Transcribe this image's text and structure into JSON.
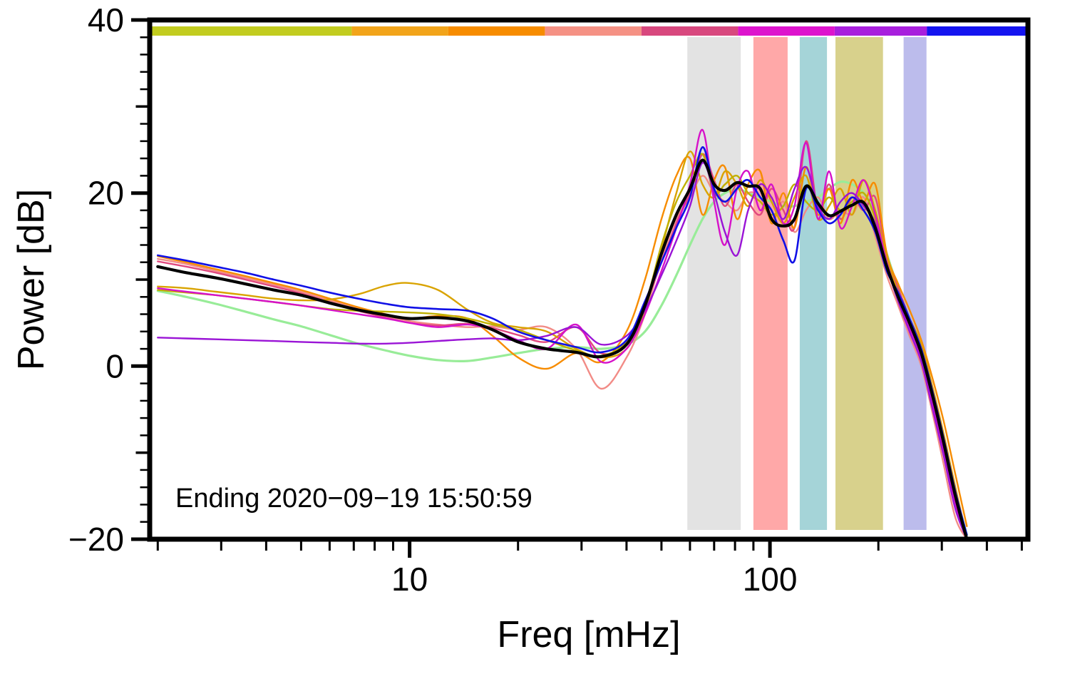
{
  "chart_data": {
    "type": "line",
    "title": "",
    "xlabel": "Freq [mHz]",
    "ylabel": "Power [dB]",
    "x_scale": "log",
    "xlim": [
      1.9,
      520
    ],
    "ylim": [
      -20,
      40
    ],
    "grid": false,
    "legend": "none",
    "annotation": "Ending 2020−09−19 15:50:59",
    "x_major_ticks": [
      {
        "value": 10,
        "label": "10"
      },
      {
        "value": 100,
        "label": "100"
      }
    ],
    "x_minor_ticks": [
      2,
      3,
      4,
      5,
      6,
      7,
      8,
      9,
      20,
      30,
      40,
      50,
      60,
      70,
      80,
      90,
      200,
      300,
      400,
      500
    ],
    "y_major_ticks": [
      {
        "value": -20,
        "label": "−20"
      },
      {
        "value": 0,
        "label": "0"
      },
      {
        "value": 20,
        "label": "20"
      },
      {
        "value": 40,
        "label": "40"
      }
    ],
    "y_minor_step": 2,
    "top_color_strip": [
      {
        "color": "#c2cc1f",
        "from": 0.0,
        "to": 0.23
      },
      {
        "color": "#f2a41a",
        "from": 0.23,
        "to": 0.34
      },
      {
        "color": "#f78c00",
        "from": 0.34,
        "to": 0.45
      },
      {
        "color": "#f59184",
        "from": 0.45,
        "to": 0.56
      },
      {
        "color": "#d8487e",
        "from": 0.56,
        "to": 0.67
      },
      {
        "color": "#dd14cd",
        "from": 0.67,
        "to": 0.78
      },
      {
        "color": "#a81fdd",
        "from": 0.78,
        "to": 0.885
      },
      {
        "color": "#1414f0",
        "from": 0.885,
        "to": 1.0
      }
    ],
    "shaded_bands": [
      {
        "color": "#e3e3e3",
        "from_mhz": 59,
        "to_mhz": 83
      },
      {
        "color": "#ffa8a8",
        "from_mhz": 90,
        "to_mhz": 112
      },
      {
        "color": "#a5d4d8",
        "from_mhz": 121,
        "to_mhz": 144
      },
      {
        "color": "#d8d18c",
        "from_mhz": 152,
        "to_mhz": 206
      },
      {
        "color": "#bcbcec",
        "from_mhz": 235,
        "to_mhz": 272
      }
    ],
    "freq_mhz": [
      2,
      2.4,
      2.9,
      3.5,
      4.2,
      5,
      6,
      7.2,
      8.6,
      10,
      12,
      14.5,
      17,
      20,
      24,
      29,
      34,
      40,
      45,
      50,
      55,
      60,
      65,
      70,
      75,
      81,
      87,
      94,
      101,
      109,
      117,
      126,
      136,
      146,
      157,
      169,
      182,
      196,
      211,
      227,
      244,
      263,
      283,
      304,
      327,
      352
    ],
    "series": [
      {
        "name": "pale-green",
        "color": "#98ec98",
        "width": 3.2,
        "values": [
          8.7,
          8.0,
          7.2,
          6.3,
          5.4,
          4.6,
          3.6,
          2.6,
          1.8,
          1.2,
          0.7,
          0.6,
          1.0,
          1.5,
          2.0,
          2.2,
          2.0,
          2.5,
          4.0,
          7.0,
          10.5,
          14.0,
          17.0,
          19.0,
          20.0,
          20.5,
          20.0,
          19.5,
          19.0,
          18.5,
          18.5,
          19.0,
          19.5,
          20.5,
          21.3,
          21.0,
          20.0,
          17.5,
          13.0,
          9.0,
          5.5,
          2.0,
          -3.0,
          -8.5,
          -14.5,
          -19.5
        ]
      },
      {
        "name": "salmon",
        "color": "#f28b86",
        "width": 2.4,
        "values": [
          12.4,
          11.8,
          11.0,
          10.2,
          9.4,
          8.6,
          7.6,
          6.6,
          5.8,
          5.2,
          4.8,
          4.5,
          4.6,
          4.2,
          4.5,
          2.0,
          -2.6,
          1.0,
          6.0,
          12.5,
          17.0,
          19.5,
          22.0,
          20.0,
          19.0,
          18.0,
          20.0,
          19.5,
          17.0,
          19.0,
          15.5,
          18.0,
          19.5,
          17.0,
          18.0,
          17.5,
          19.5,
          15.0,
          10.5,
          7.0,
          3.5,
          0.0,
          -5.5,
          -11.5,
          -17.5,
          -20.0
        ]
      },
      {
        "name": "rose",
        "color": "#e0487f",
        "width": 2.4,
        "values": [
          12.1,
          11.5,
          10.8,
          10.0,
          9.2,
          8.4,
          7.4,
          6.4,
          5.6,
          5.0,
          4.7,
          4.9,
          4.4,
          3.6,
          2.8,
          4.5,
          1.5,
          2.5,
          7.0,
          12.0,
          16.5,
          20.0,
          24.5,
          21.5,
          18.5,
          21.0,
          19.0,
          17.5,
          20.5,
          18.0,
          16.0,
          26.0,
          18.0,
          21.0,
          17.0,
          19.5,
          18.0,
          19.5,
          12.5,
          9.0,
          5.5,
          2.0,
          -3.5,
          -9.0,
          -15.0,
          -19.8
        ]
      },
      {
        "name": "orange",
        "color": "#f78c00",
        "width": 2.4,
        "values": [
          12.7,
          12.0,
          11.2,
          10.4,
          9.6,
          8.8,
          7.8,
          6.8,
          6.0,
          5.5,
          5.8,
          5.5,
          3.5,
          1.0,
          -0.3,
          1.5,
          0.5,
          4.0,
          10.0,
          17.0,
          22.0,
          24.0,
          17.5,
          21.5,
          23.0,
          17.0,
          21.0,
          22.5,
          16.5,
          20.0,
          16.0,
          23.0,
          17.5,
          20.5,
          16.5,
          21.5,
          19.0,
          21.0,
          13.0,
          9.5,
          6.5,
          3.0,
          -1.5,
          -6.5,
          -12.5,
          -18.5
        ]
      },
      {
        "name": "gold",
        "color": "#d9a300",
        "width": 2.4,
        "values": [
          9.2,
          9.0,
          8.6,
          8.2,
          7.8,
          7.6,
          7.7,
          8.3,
          9.3,
          9.6,
          8.8,
          6.5,
          5.0,
          4.5,
          4.0,
          2.0,
          1.0,
          2.0,
          6.5,
          13.5,
          20.0,
          24.8,
          21.0,
          19.5,
          22.5,
          21.0,
          18.5,
          21.5,
          19.0,
          16.5,
          19.5,
          22.0,
          17.0,
          18.5,
          20.5,
          17.5,
          21.5,
          18.0,
          12.5,
          8.5,
          5.5,
          2.5,
          -2.5,
          -8.0,
          -14.0,
          -19.8
        ]
      },
      {
        "name": "olive",
        "color": "#bfb000",
        "width": 2.4,
        "values": [
          8.8,
          8.5,
          8.2,
          7.8,
          7.4,
          7.0,
          6.6,
          6.4,
          6.3,
          6.2,
          6.0,
          5.5,
          4.8,
          4.2,
          3.0,
          1.8,
          1.2,
          2.8,
          7.0,
          14.0,
          19.0,
          22.0,
          24.5,
          20.0,
          21.0,
          22.0,
          20.0,
          19.0,
          17.5,
          18.5,
          21.0,
          19.0,
          18.0,
          19.5,
          18.0,
          19.0,
          20.0,
          17.0,
          12.0,
          8.0,
          5.0,
          1.0,
          -4.0,
          -9.5,
          -15.5,
          -20.0
        ]
      },
      {
        "name": "magenta",
        "color": "#d611c9",
        "width": 2.4,
        "values": [
          9.0,
          8.6,
          8.2,
          7.8,
          7.4,
          7.0,
          6.5,
          6.0,
          5.5,
          5.0,
          4.5,
          4.8,
          4.2,
          3.0,
          2.0,
          4.8,
          0.5,
          2.0,
          6.0,
          11.0,
          16.0,
          21.0,
          27.3,
          19.0,
          14.0,
          20.5,
          22.5,
          18.0,
          21.0,
          16.5,
          18.5,
          25.8,
          17.0,
          22.5,
          16.0,
          18.5,
          21.5,
          17.5,
          12.0,
          8.0,
          4.5,
          1.0,
          -4.5,
          -10.0,
          -16.0,
          -20.0
        ]
      },
      {
        "name": "purple",
        "color": "#9a14d6",
        "width": 2.4,
        "values": [
          3.3,
          3.2,
          3.1,
          3.0,
          2.9,
          2.8,
          2.7,
          2.6,
          2.6,
          2.7,
          2.9,
          3.1,
          3.2,
          3.0,
          3.5,
          4.5,
          2.5,
          3.5,
          6.5,
          10.5,
          14.5,
          18.5,
          23.5,
          20.0,
          15.5,
          12.8,
          18.0,
          21.0,
          19.5,
          17.0,
          20.5,
          23.0,
          18.5,
          17.0,
          19.0,
          20.0,
          18.5,
          16.5,
          11.5,
          7.5,
          4.0,
          0.5,
          -5.0,
          -10.5,
          -16.5,
          -20.0
        ]
      },
      {
        "name": "blue",
        "color": "#1010e6",
        "width": 2.6,
        "values": [
          12.8,
          12.2,
          11.5,
          10.8,
          10.0,
          9.3,
          8.5,
          7.8,
          7.2,
          6.8,
          6.6,
          6.4,
          5.5,
          4.0,
          3.0,
          2.2,
          1.6,
          3.0,
          7.5,
          12.0,
          16.0,
          19.5,
          25.3,
          20.5,
          19.0,
          20.5,
          21.5,
          19.5,
          18.0,
          14.5,
          12.2,
          20.5,
          18.0,
          16.5,
          17.5,
          19.5,
          18.0,
          15.5,
          11.0,
          8.5,
          5.5,
          2.0,
          -3.0,
          -8.5,
          -14.5,
          -19.5
        ]
      },
      {
        "name": "mean",
        "color": "#000000",
        "width": 4.2,
        "values": [
          11.5,
          10.8,
          10.2,
          9.5,
          8.8,
          8.2,
          7.3,
          6.5,
          5.9,
          5.5,
          5.6,
          5.2,
          4.2,
          2.8,
          2.0,
          1.6,
          1.1,
          2.5,
          7.0,
          13.0,
          17.5,
          20.5,
          23.8,
          21.0,
          20.3,
          21.2,
          20.8,
          20.5,
          17.0,
          16.2,
          17.0,
          20.8,
          18.8,
          17.4,
          17.9,
          18.6,
          18.9,
          16.0,
          11.5,
          8.0,
          5.0,
          1.5,
          -3.5,
          -9.0,
          -15.0,
          -20.0
        ]
      }
    ]
  }
}
